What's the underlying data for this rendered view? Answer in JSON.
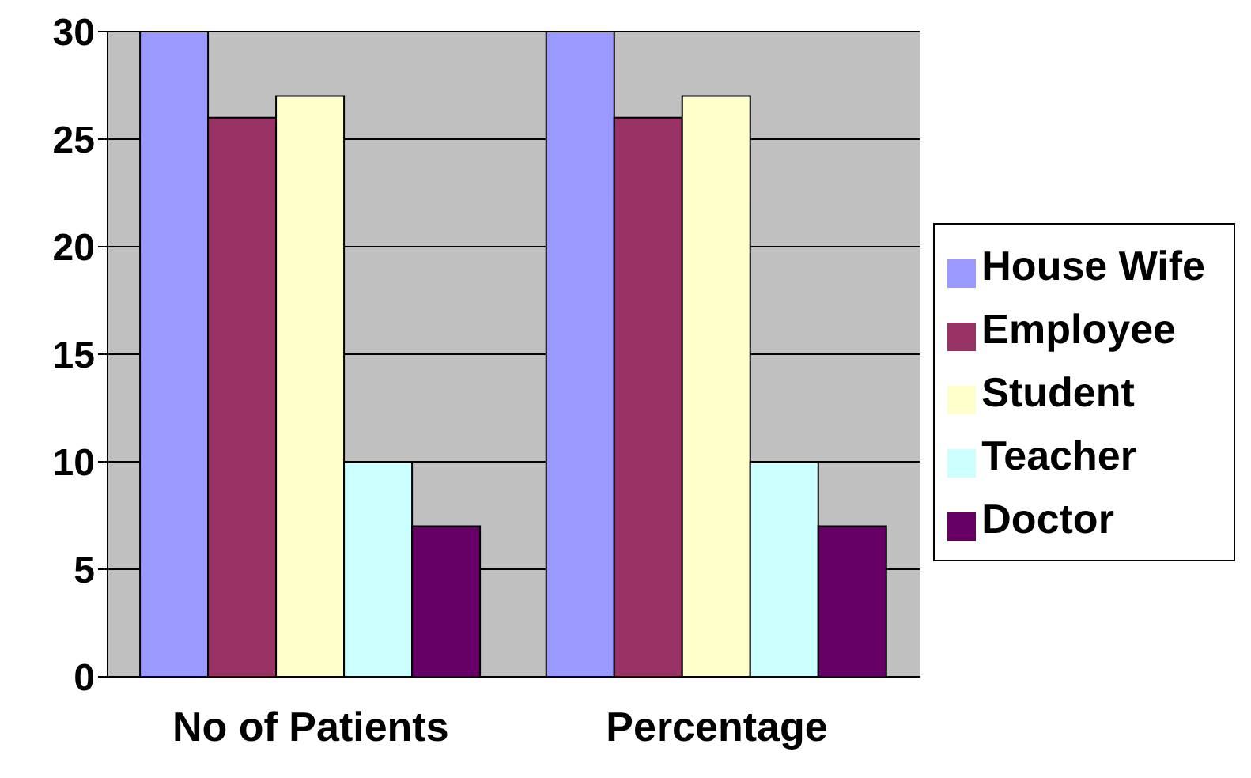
{
  "chart_data": {
    "type": "bar",
    "categories": [
      "No of Patients",
      "Percentage"
    ],
    "series": [
      {
        "name": "House Wife",
        "color": "#9999ff",
        "values": [
          30,
          30
        ]
      },
      {
        "name": "Employee",
        "color": "#993366",
        "values": [
          26,
          26
        ]
      },
      {
        "name": "Student",
        "color": "#ffffcc",
        "values": [
          27,
          27
        ]
      },
      {
        "name": "Teacher",
        "color": "#ccffff",
        "values": [
          10,
          10
        ]
      },
      {
        "name": "Doctor",
        "color": "#660066",
        "values": [
          7,
          7
        ]
      }
    ],
    "ylim": [
      0,
      30
    ],
    "yticks": [
      0,
      5,
      10,
      15,
      20,
      25,
      30
    ],
    "grid": "y",
    "legend": "right"
  }
}
